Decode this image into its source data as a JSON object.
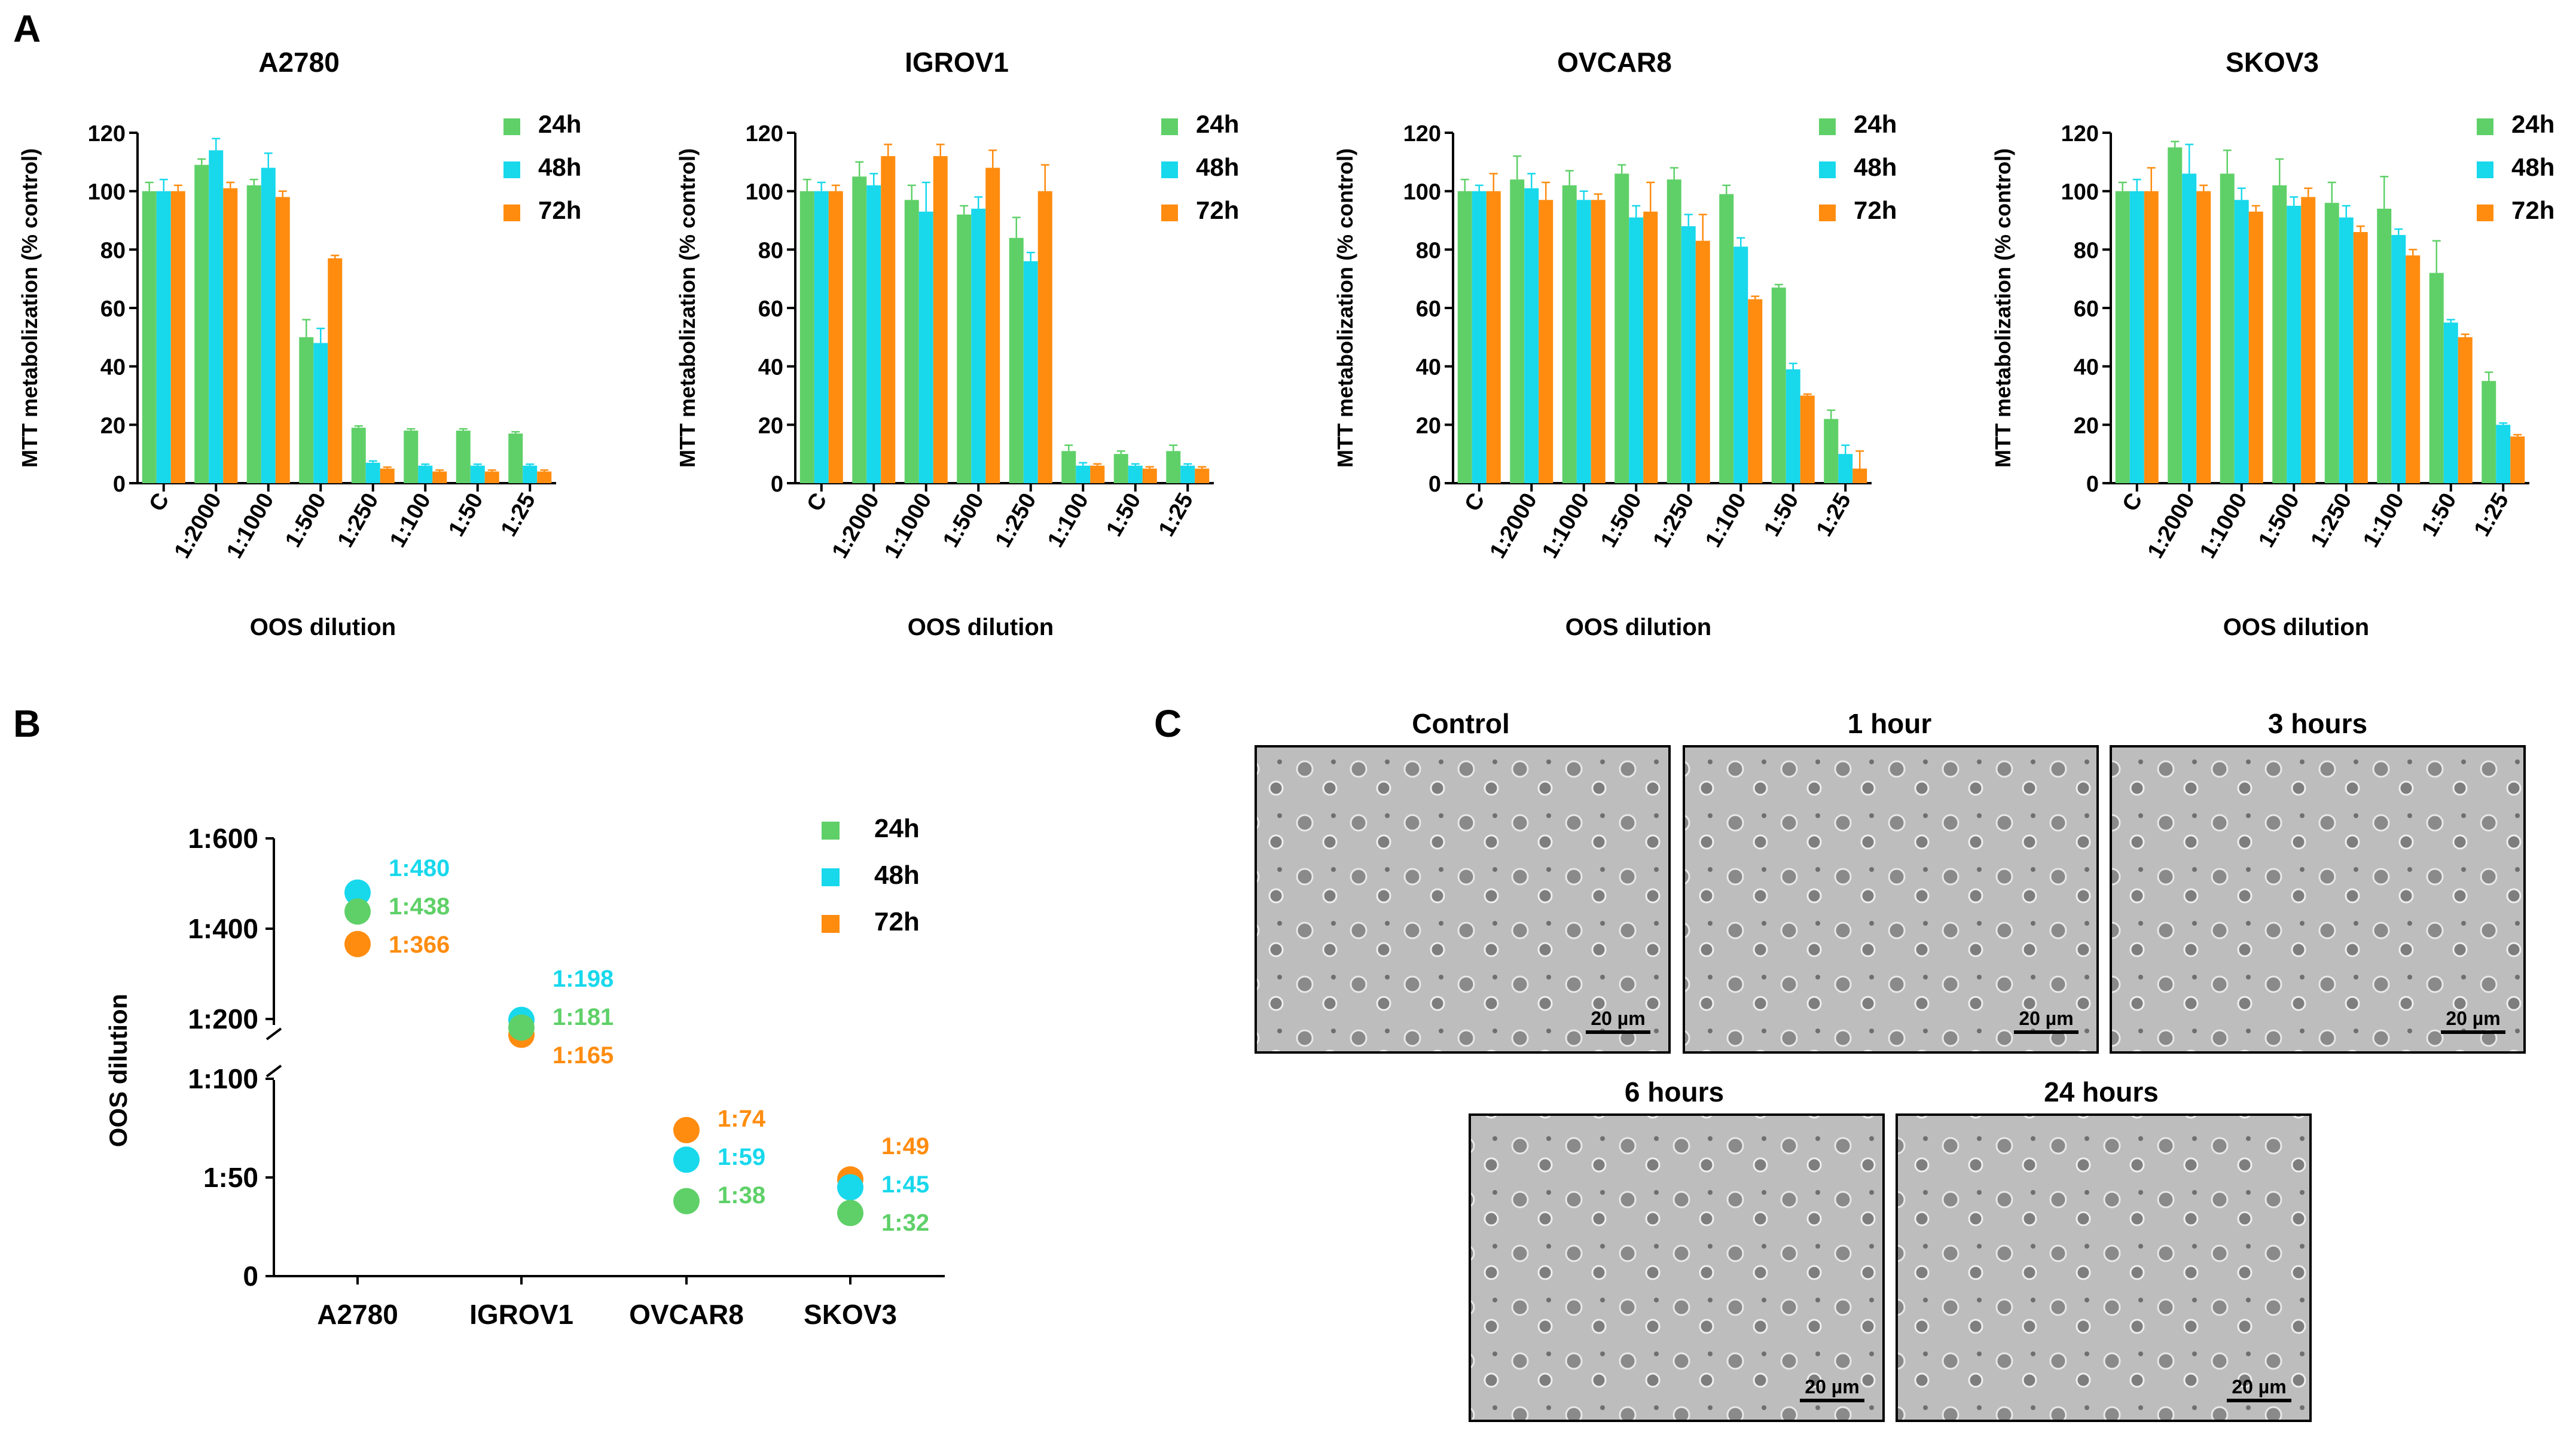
{
  "panel_labels": [
    "A",
    "B",
    "C"
  ],
  "colors": {
    "24h": "#5fd068",
    "48h": "#18d8ec",
    "72h": "#ff8c0f"
  },
  "chart_data": [
    {
      "type": "bar",
      "title": "A2780",
      "xlabel": "OOS dilution",
      "ylabel": "MTT metabolization (% control)",
      "ylim": [
        0,
        120
      ],
      "yticks": [
        "0",
        "20",
        "40",
        "60",
        "80",
        "100",
        "120"
      ],
      "categories": [
        "C",
        "1:2000",
        "1:1000",
        "1:500",
        "1:250",
        "1:100",
        "1:50",
        "1:25"
      ],
      "series": [
        {
          "name": "24h",
          "values": [
            100,
            109,
            102,
            50,
            19,
            18,
            18,
            17
          ],
          "errors": [
            3,
            2,
            2,
            6,
            0.6,
            0.6,
            0.6,
            0.6
          ]
        },
        {
          "name": "48h",
          "values": [
            100,
            114,
            108,
            48,
            7,
            6,
            6,
            6
          ],
          "errors": [
            4,
            4,
            5,
            5,
            0.6,
            0.5,
            0.5,
            0.5
          ]
        },
        {
          "name": "72h",
          "values": [
            100,
            101,
            98,
            77,
            5,
            4,
            4,
            4
          ],
          "errors": [
            2,
            2,
            2,
            1,
            0.5,
            0.5,
            0.5,
            0.5
          ]
        }
      ],
      "legend": "top-right"
    },
    {
      "type": "bar",
      "title": "IGROV1",
      "xlabel": "OOS dilution",
      "ylabel": "MTT metabolization (% control)",
      "ylim": [
        0,
        120
      ],
      "yticks": [
        "0",
        "20",
        "40",
        "60",
        "80",
        "100",
        "120"
      ],
      "categories": [
        "C",
        "1:2000",
        "1:1000",
        "1:500",
        "1:250",
        "1:100",
        "1:50",
        "1:25"
      ],
      "series": [
        {
          "name": "24h",
          "values": [
            100,
            105,
            97,
            92,
            84,
            11,
            10,
            11
          ],
          "errors": [
            4,
            5,
            5,
            3,
            7,
            2,
            1,
            2
          ]
        },
        {
          "name": "48h",
          "values": [
            100,
            102,
            93,
            94,
            76,
            6,
            6,
            6
          ],
          "errors": [
            3,
            4,
            10,
            4,
            3,
            1,
            0.6,
            0.6
          ]
        },
        {
          "name": "72h",
          "values": [
            100,
            112,
            112,
            108,
            100,
            6,
            5,
            5
          ],
          "errors": [
            2,
            4,
            4,
            6,
            9,
            0.6,
            0.6,
            0.6
          ]
        }
      ],
      "legend": "top-right"
    },
    {
      "type": "bar",
      "title": "OVCAR8",
      "xlabel": "OOS dilution",
      "ylabel": "MTT metabolization (% control)",
      "ylim": [
        0,
        120
      ],
      "yticks": [
        "0",
        "20",
        "40",
        "60",
        "80",
        "100",
        "120"
      ],
      "categories": [
        "C",
        "1:2000",
        "1:1000",
        "1:500",
        "1:250",
        "1:100",
        "1:50",
        "1:25"
      ],
      "series": [
        {
          "name": "24h",
          "values": [
            100,
            104,
            102,
            106,
            104,
            99,
            67,
            22
          ],
          "errors": [
            4,
            8,
            5,
            3,
            4,
            3,
            1,
            3
          ]
        },
        {
          "name": "48h",
          "values": [
            100,
            101,
            97,
            91,
            88,
            81,
            39,
            10
          ],
          "errors": [
            2,
            5,
            3,
            4,
            4,
            3,
            2,
            3
          ]
        },
        {
          "name": "72h",
          "values": [
            100,
            97,
            97,
            93,
            83,
            63,
            30,
            5
          ],
          "errors": [
            6,
            6,
            2,
            10,
            9,
            1,
            0.5,
            6
          ]
        }
      ],
      "legend": "top-right"
    },
    {
      "type": "bar",
      "title": "SKOV3",
      "xlabel": "OOS dilution",
      "ylabel": "MTT metabolization (% control)",
      "ylim": [
        0,
        120
      ],
      "yticks": [
        "0",
        "20",
        "40",
        "60",
        "80",
        "100",
        "120"
      ],
      "categories": [
        "C",
        "1:2000",
        "1:1000",
        "1:500",
        "1:250",
        "1:100",
        "1:50",
        "1:25"
      ],
      "series": [
        {
          "name": "24h",
          "values": [
            100,
            115,
            106,
            102,
            96,
            94,
            72,
            35
          ],
          "errors": [
            3,
            2,
            8,
            9,
            7,
            11,
            11,
            3
          ]
        },
        {
          "name": "48h",
          "values": [
            100,
            106,
            97,
            95,
            91,
            85,
            55,
            20
          ],
          "errors": [
            4,
            10,
            4,
            3,
            4,
            2,
            1,
            0.6
          ]
        },
        {
          "name": "72h",
          "values": [
            100,
            100,
            93,
            98,
            86,
            78,
            50,
            16
          ],
          "errors": [
            8,
            2,
            2,
            3,
            2,
            2,
            1,
            0.6
          ]
        }
      ],
      "legend": "top-right"
    },
    {
      "type": "scatter",
      "title": "",
      "ylabel": "OOS dilution",
      "y_scale": "broken",
      "yticks": [
        "0",
        "1:50",
        "1:100",
        "1:200",
        "1:400",
        "1:600"
      ],
      "categories": [
        "A2780",
        "IGROV1",
        "OVCAR8",
        "SKOV3"
      ],
      "series": [
        {
          "name": "24h",
          "values": [
            438,
            181,
            38,
            32
          ],
          "labels": [
            "1:438",
            "1:181",
            "1:38",
            "1:32"
          ]
        },
        {
          "name": "48h",
          "values": [
            480,
            198,
            59,
            45
          ],
          "labels": [
            "1:480",
            "1:198",
            "1:59",
            "1:45"
          ]
        },
        {
          "name": "72h",
          "values": [
            366,
            165,
            74,
            49
          ],
          "labels": [
            "1:366",
            "1:165",
            "1:74",
            "1:49"
          ]
        }
      ],
      "legend": "top-right"
    }
  ],
  "micrographs": {
    "items": [
      {
        "title": "Control",
        "scale": "20 µm"
      },
      {
        "title": "1 hour",
        "scale": "20 µm"
      },
      {
        "title": "3 hours",
        "scale": "20 µm"
      },
      {
        "title": "6 hours",
        "scale": "20 µm"
      },
      {
        "title": "24 hours",
        "scale": "20 µm"
      }
    ]
  }
}
